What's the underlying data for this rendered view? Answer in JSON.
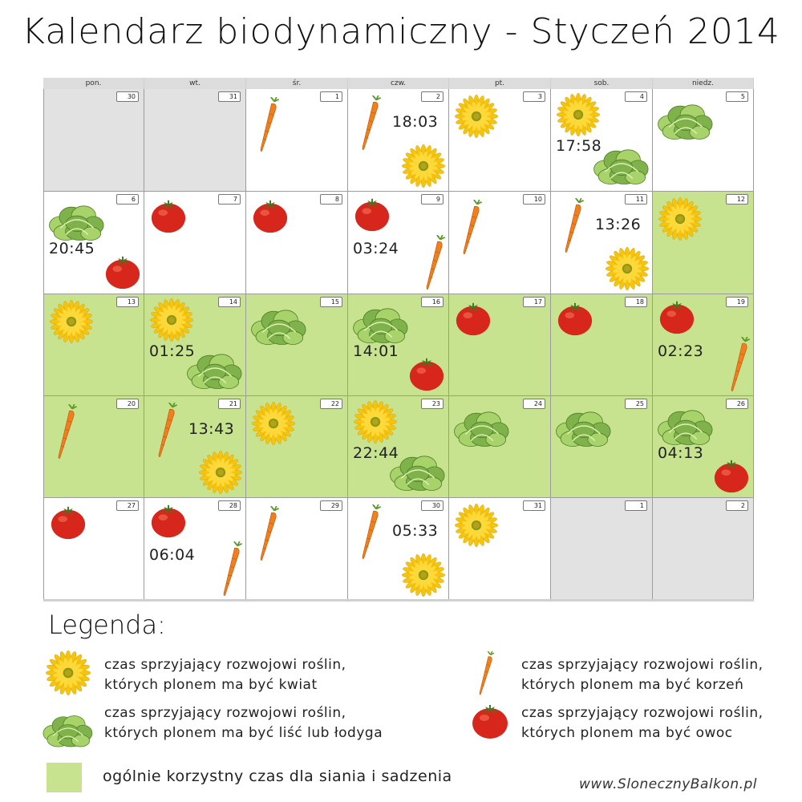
{
  "title": "Kalendarz biodynamiczny - Styczeń 2014",
  "days_of_week": [
    "pon.",
    "wt.",
    "śr.",
    "czw.",
    "pt.",
    "sob.",
    "niedz."
  ],
  "colors": {
    "favorable_green": "#c8e38f",
    "other_month_gray": "#e2e2e2",
    "flower": "#f5c40e",
    "leaf": "#7fb24a",
    "root": "#f07f1e",
    "fruit": "#d7261b"
  },
  "weeks": [
    [
      {
        "day": "30",
        "other": true,
        "green": false,
        "icons": [],
        "time": ""
      },
      {
        "day": "31",
        "other": true,
        "green": false,
        "icons": [],
        "time": ""
      },
      {
        "day": "1",
        "other": false,
        "green": false,
        "icons": [
          "carrot-icon"
        ],
        "time": ""
      },
      {
        "day": "2",
        "other": false,
        "green": false,
        "icons": [
          "carrot-icon",
          "flower-icon"
        ],
        "time": "18:03"
      },
      {
        "day": "3",
        "other": false,
        "green": false,
        "icons": [
          "flower-icon"
        ],
        "time": ""
      },
      {
        "day": "4",
        "other": false,
        "green": false,
        "icons": [
          "flower-icon",
          "lettuce-icon"
        ],
        "time": "17:58"
      },
      {
        "day": "5",
        "other": false,
        "green": false,
        "icons": [
          "lettuce-icon"
        ],
        "time": ""
      }
    ],
    [
      {
        "day": "6",
        "other": false,
        "green": false,
        "icons": [
          "lettuce-icon",
          "tomato-icon"
        ],
        "time": "20:45"
      },
      {
        "day": "7",
        "other": false,
        "green": false,
        "icons": [
          "tomato-icon"
        ],
        "time": ""
      },
      {
        "day": "8",
        "other": false,
        "green": false,
        "icons": [
          "tomato-icon"
        ],
        "time": ""
      },
      {
        "day": "9",
        "other": false,
        "green": false,
        "icons": [
          "tomato-icon",
          "carrot-icon"
        ],
        "time": "03:24"
      },
      {
        "day": "10",
        "other": false,
        "green": false,
        "icons": [
          "carrot-icon"
        ],
        "time": ""
      },
      {
        "day": "11",
        "other": false,
        "green": false,
        "icons": [
          "carrot-icon",
          "flower-icon"
        ],
        "time": "13:26"
      },
      {
        "day": "12",
        "other": false,
        "green": true,
        "icons": [
          "flower-icon"
        ],
        "time": ""
      }
    ],
    [
      {
        "day": "13",
        "other": false,
        "green": true,
        "icons": [
          "flower-icon"
        ],
        "time": ""
      },
      {
        "day": "14",
        "other": false,
        "green": true,
        "icons": [
          "flower-icon",
          "lettuce-icon"
        ],
        "time": "01:25"
      },
      {
        "day": "15",
        "other": false,
        "green": true,
        "icons": [
          "lettuce-icon"
        ],
        "time": ""
      },
      {
        "day": "16",
        "other": false,
        "green": true,
        "icons": [
          "lettuce-icon",
          "tomato-icon"
        ],
        "time": "14:01"
      },
      {
        "day": "17",
        "other": false,
        "green": true,
        "icons": [
          "tomato-icon"
        ],
        "time": ""
      },
      {
        "day": "18",
        "other": false,
        "green": true,
        "icons": [
          "tomato-icon"
        ],
        "time": ""
      },
      {
        "day": "19",
        "other": false,
        "green": true,
        "icons": [
          "tomato-icon",
          "carrot-icon"
        ],
        "time": "02:23"
      }
    ],
    [
      {
        "day": "20",
        "other": false,
        "green": true,
        "icons": [
          "carrot-icon"
        ],
        "time": ""
      },
      {
        "day": "21",
        "other": false,
        "green": true,
        "icons": [
          "carrot-icon",
          "flower-icon"
        ],
        "time": "13:43"
      },
      {
        "day": "22",
        "other": false,
        "green": true,
        "icons": [
          "flower-icon"
        ],
        "time": ""
      },
      {
        "day": "23",
        "other": false,
        "green": true,
        "icons": [
          "flower-icon",
          "lettuce-icon"
        ],
        "time": "22:44"
      },
      {
        "day": "24",
        "other": false,
        "green": true,
        "icons": [
          "lettuce-icon"
        ],
        "time": ""
      },
      {
        "day": "25",
        "other": false,
        "green": true,
        "icons": [
          "lettuce-icon"
        ],
        "time": ""
      },
      {
        "day": "26",
        "other": false,
        "green": true,
        "icons": [
          "lettuce-icon",
          "tomato-icon"
        ],
        "time": "04:13"
      }
    ],
    [
      {
        "day": "27",
        "other": false,
        "green": false,
        "icons": [
          "tomato-icon"
        ],
        "time": ""
      },
      {
        "day": "28",
        "other": false,
        "green": false,
        "icons": [
          "tomato-icon",
          "carrot-icon"
        ],
        "time": "06:04"
      },
      {
        "day": "29",
        "other": false,
        "green": false,
        "icons": [
          "carrot-icon"
        ],
        "time": ""
      },
      {
        "day": "30",
        "other": false,
        "green": false,
        "icons": [
          "carrot-icon",
          "flower-icon"
        ],
        "time": "05:33"
      },
      {
        "day": "31",
        "other": false,
        "green": false,
        "icons": [
          "flower-icon"
        ],
        "time": ""
      },
      {
        "day": "1",
        "other": true,
        "green": false,
        "icons": [],
        "time": ""
      },
      {
        "day": "2",
        "other": true,
        "green": false,
        "icons": [],
        "time": ""
      }
    ]
  ],
  "legend": {
    "title": "Legenda:",
    "flower_line1": "czas sprzyjający rozwojowi roślin,",
    "flower_line2": "których plonem ma być kwiat",
    "leaf_line1": "czas sprzyjający rozwojowi roślin,",
    "leaf_line2": "których plonem ma być liść lub łodyga",
    "root_line1": "czas sprzyjający rozwojowi roślin,",
    "root_line2": "których plonem ma być korzeń",
    "fruit_line1": "czas sprzyjający rozwojowi roślin,",
    "fruit_line2": "których plonem ma być owoc",
    "green_label": "ogólnie korzystny czas dla siania i sadzenia"
  },
  "watermark": "www.SlonecznyBalkon.pl"
}
